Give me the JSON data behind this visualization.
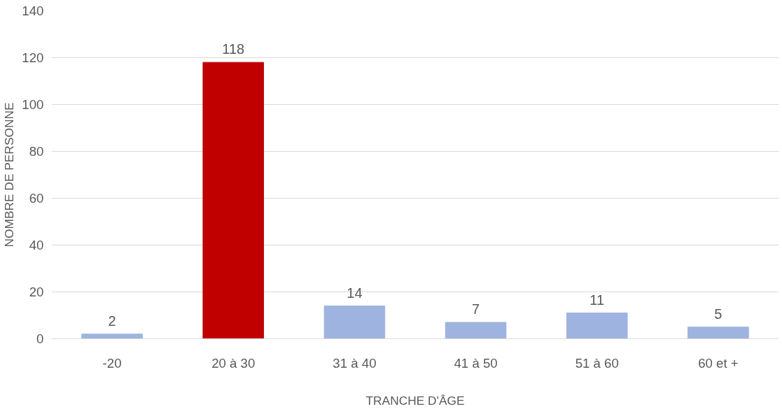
{
  "chart_data": {
    "type": "bar",
    "xlabel": "TRANCHE D'ÂGE",
    "ylabel": "NOMBRE DE PERSONNE",
    "categories": [
      "-20",
      "20 à 30",
      "31 à 40",
      "41 à 50",
      "51 à 60",
      "60 et +"
    ],
    "values": [
      2,
      118,
      14,
      7,
      11,
      5
    ],
    "colors": [
      "#9fb3e0",
      "#c00000",
      "#9fb3e0",
      "#9fb3e0",
      "#9fb3e0",
      "#9fb3e0"
    ],
    "ylim": [
      0,
      140
    ],
    "yticks": [
      0,
      20,
      40,
      60,
      80,
      100,
      120,
      140
    ],
    "grid": "y",
    "data_labels": true
  }
}
